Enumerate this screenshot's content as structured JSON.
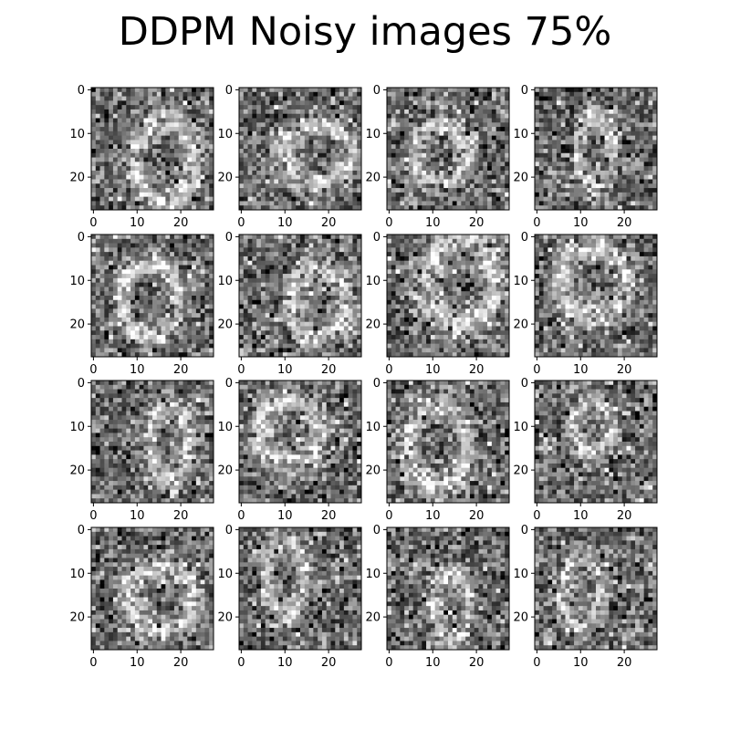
{
  "chart_data": {
    "type": "heatmap",
    "title": "DDPM Noisy images 75%",
    "grid": {
      "rows": 4,
      "cols": 4
    },
    "image_size": [
      28,
      28
    ],
    "colormap": "gray",
    "axes": {
      "x_ticks": [
        0,
        10,
        20
      ],
      "y_ticks": [
        0,
        10,
        20
      ],
      "xlim": [
        -0.5,
        27.5
      ],
      "ylim": [
        27.5,
        -0.5
      ],
      "grid": false
    },
    "panels": [
      {
        "row": 0,
        "col": 0
      },
      {
        "row": 0,
        "col": 1
      },
      {
        "row": 0,
        "col": 2
      },
      {
        "row": 0,
        "col": 3
      },
      {
        "row": 1,
        "col": 0
      },
      {
        "row": 1,
        "col": 1
      },
      {
        "row": 1,
        "col": 2
      },
      {
        "row": 1,
        "col": 3
      },
      {
        "row": 2,
        "col": 0
      },
      {
        "row": 2,
        "col": 1
      },
      {
        "row": 2,
        "col": 2
      },
      {
        "row": 2,
        "col": 3
      },
      {
        "row": 3,
        "col": 0
      },
      {
        "row": 3,
        "col": 1
      },
      {
        "row": 3,
        "col": 2
      },
      {
        "row": 3,
        "col": 3
      }
    ]
  }
}
